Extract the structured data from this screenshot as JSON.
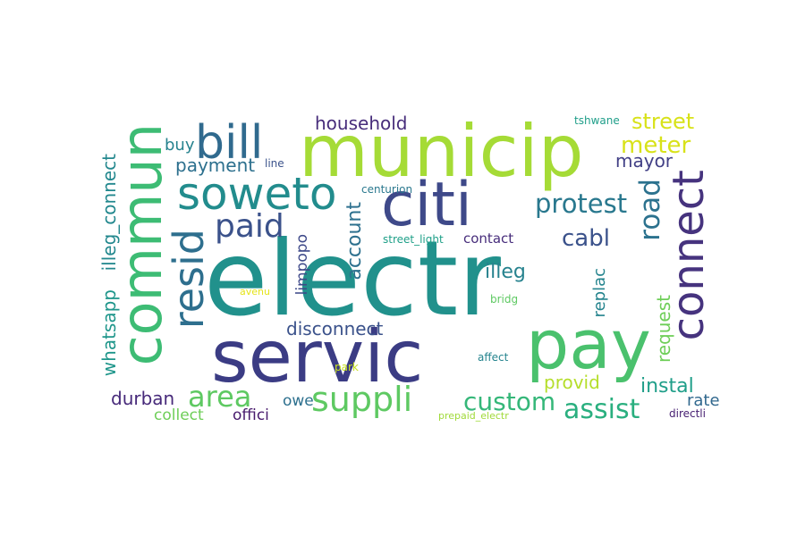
{
  "words": [
    {
      "id": "electr",
      "text": "electr",
      "color": "#21918c"
    },
    {
      "id": "municip",
      "text": "municip",
      "color": "#a5db36"
    },
    {
      "id": "servic",
      "text": "servic",
      "color": "#3b3c84"
    },
    {
      "id": "pay",
      "text": "pay",
      "color": "#4ac16d"
    },
    {
      "id": "commun",
      "text": "commun",
      "color": "#3dbc74"
    },
    {
      "id": "citi",
      "text": "citi",
      "color": "#3e4989"
    },
    {
      "id": "connect",
      "text": "connect",
      "color": "#46337e"
    },
    {
      "id": "soweto",
      "text": "soweto",
      "color": "#228c8d"
    },
    {
      "id": "bill",
      "text": "bill",
      "color": "#306a8e"
    },
    {
      "id": "resid",
      "text": "resid",
      "color": "#2e6f8e"
    },
    {
      "id": "paid",
      "text": "paid",
      "color": "#3b528b"
    },
    {
      "id": "suppli",
      "text": "suppli",
      "color": "#5ec962"
    },
    {
      "id": "area",
      "text": "area",
      "color": "#5ec962"
    },
    {
      "id": "custom",
      "text": "custom",
      "color": "#35b779"
    },
    {
      "id": "assist",
      "text": "assist",
      "color": "#2aaf7f"
    },
    {
      "id": "protest",
      "text": "protest",
      "color": "#29788e"
    },
    {
      "id": "road",
      "text": "road",
      "color": "#2c728e"
    },
    {
      "id": "cabl",
      "text": "cabl",
      "color": "#3b528b"
    },
    {
      "id": "meter",
      "text": "meter",
      "color": "#d8e219"
    },
    {
      "id": "street",
      "text": "street",
      "color": "#d8e219"
    },
    {
      "id": "payment",
      "text": "payment",
      "color": "#2d708e"
    },
    {
      "id": "household",
      "text": "household",
      "color": "#472d7b"
    },
    {
      "id": "mayor",
      "text": "mayor",
      "color": "#424086"
    },
    {
      "id": "account",
      "text": "account",
      "color": "#2d708e"
    },
    {
      "id": "illeg",
      "text": "illeg",
      "color": "#26828e"
    },
    {
      "id": "illeg_connect",
      "text": "illeg_connect",
      "color": "#23888e"
    },
    {
      "id": "whatsapp",
      "text": "whatsapp",
      "color": "#1f968b"
    },
    {
      "id": "disconnect",
      "text": "disconnect",
      "color": "#3b528b"
    },
    {
      "id": "durban",
      "text": "durban",
      "color": "#472a7a"
    },
    {
      "id": "instal",
      "text": "instal",
      "color": "#1f9e89"
    },
    {
      "id": "rate",
      "text": "rate",
      "color": "#31688e"
    },
    {
      "id": "provid",
      "text": "provid",
      "color": "#b5de2b"
    },
    {
      "id": "request",
      "text": "request",
      "color": "#6ece58"
    },
    {
      "id": "replac",
      "text": "replac",
      "color": "#25848e"
    },
    {
      "id": "limpopo",
      "text": "limpopo",
      "color": "#3e4989"
    },
    {
      "id": "buy",
      "text": "buy",
      "color": "#26828e"
    },
    {
      "id": "collect",
      "text": "collect",
      "color": "#6ece58"
    },
    {
      "id": "offici",
      "text": "offici",
      "color": "#481b6d"
    },
    {
      "id": "owe",
      "text": "owe",
      "color": "#2d708e"
    },
    {
      "id": "contact",
      "text": "contact",
      "color": "#472d7b"
    },
    {
      "id": "line",
      "text": "line",
      "color": "#3b528b"
    },
    {
      "id": "centurion",
      "text": "centurion",
      "color": "#2a788e"
    },
    {
      "id": "street_light",
      "text": "street_light",
      "color": "#1fa088"
    },
    {
      "id": "tshwane",
      "text": "tshwane",
      "color": "#1f9e89"
    },
    {
      "id": "bridg",
      "text": "bridg",
      "color": "#5ec962"
    },
    {
      "id": "avenu",
      "text": "avenu",
      "color": "#e5e419"
    },
    {
      "id": "affect",
      "text": "affect",
      "color": "#25848e"
    },
    {
      "id": "park",
      "text": "park",
      "color": "#c8e020"
    },
    {
      "id": "prepaid_electr",
      "text": "prepaid_electr",
      "color": "#a0da39"
    },
    {
      "id": "directli",
      "text": "directli",
      "color": "#482173"
    }
  ]
}
